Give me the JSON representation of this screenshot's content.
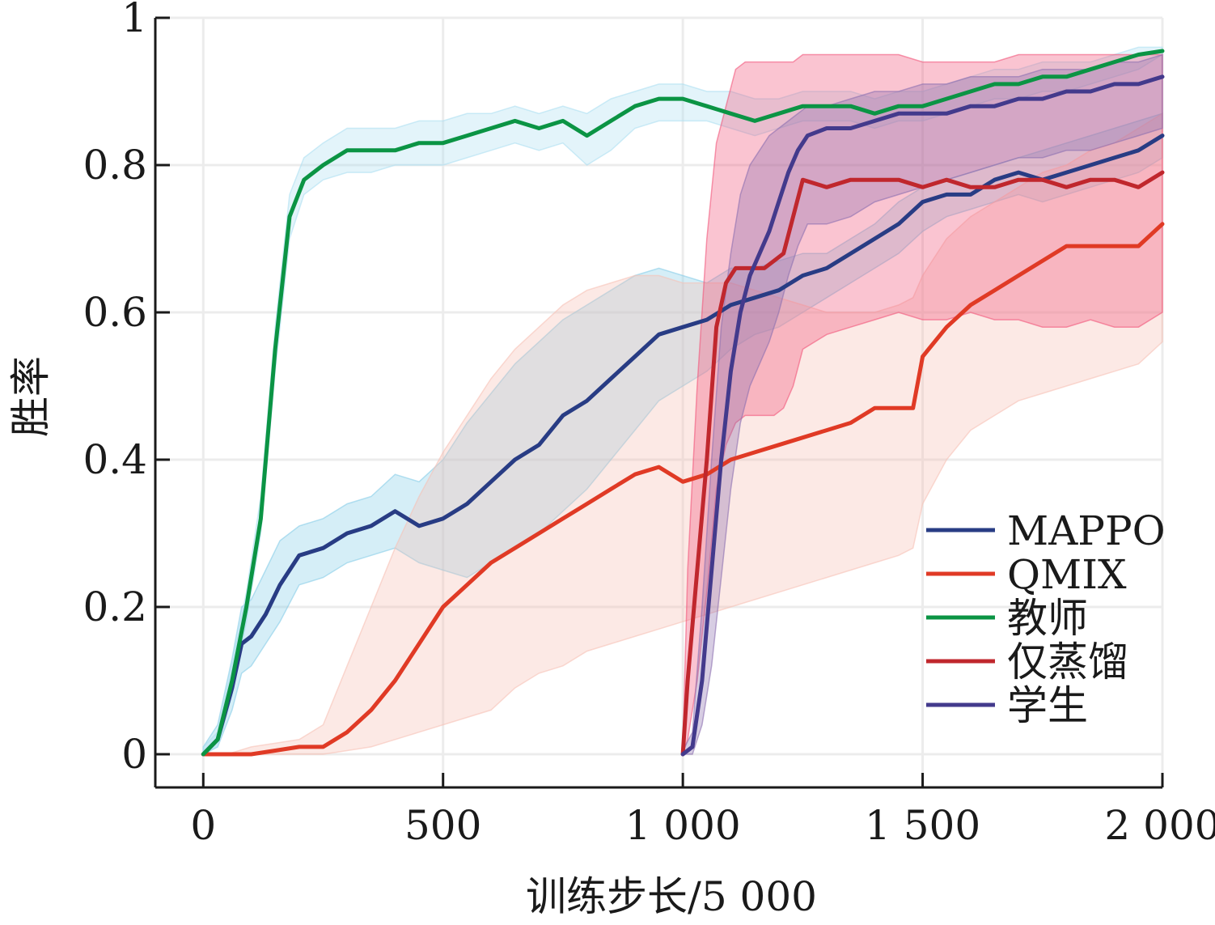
{
  "chart_data": {
    "type": "line",
    "xlabel": "训练步长/5 000",
    "ylabel": "胜率",
    "xlim": [
      -100,
      2000
    ],
    "ylim": [
      -0.045,
      1.0
    ],
    "x_ticks": [
      0,
      500,
      1000,
      1500,
      2000
    ],
    "x_tick_labels": [
      "0",
      "500",
      "1 000",
      "1 500",
      "2 000"
    ],
    "y_ticks": [
      0,
      0.2,
      0.4,
      0.6,
      0.8,
      1.0
    ],
    "y_tick_labels": [
      "0",
      "0.2",
      "0.4",
      "0.6",
      "0.8",
      "1"
    ],
    "grid": true,
    "legend_position": "bottom-right",
    "series": [
      {
        "name": "MAPPO",
        "color": "#283c84",
        "band_color": "#87cde8",
        "x": [
          0,
          30,
          60,
          80,
          100,
          130,
          160,
          200,
          250,
          300,
          350,
          400,
          450,
          500,
          550,
          600,
          650,
          700,
          750,
          800,
          850,
          900,
          950,
          1000,
          1050,
          1100,
          1150,
          1200,
          1250,
          1300,
          1350,
          1400,
          1450,
          1500,
          1550,
          1600,
          1650,
          1700,
          1750,
          1800,
          1850,
          1900,
          1950,
          2000
        ],
        "y": [
          0,
          0.02,
          0.09,
          0.15,
          0.16,
          0.19,
          0.23,
          0.27,
          0.28,
          0.3,
          0.31,
          0.33,
          0.31,
          0.32,
          0.34,
          0.37,
          0.4,
          0.42,
          0.46,
          0.48,
          0.51,
          0.54,
          0.57,
          0.58,
          0.59,
          0.61,
          0.62,
          0.63,
          0.65,
          0.66,
          0.68,
          0.7,
          0.72,
          0.75,
          0.76,
          0.76,
          0.78,
          0.79,
          0.78,
          0.79,
          0.8,
          0.81,
          0.82,
          0.84
        ],
        "upper": [
          0.01,
          0.04,
          0.13,
          0.2,
          0.21,
          0.25,
          0.29,
          0.31,
          0.32,
          0.34,
          0.35,
          0.38,
          0.37,
          0.4,
          0.45,
          0.49,
          0.53,
          0.56,
          0.59,
          0.61,
          0.63,
          0.65,
          0.66,
          0.65,
          0.64,
          0.66,
          0.66,
          0.67,
          0.68,
          0.68,
          0.7,
          0.72,
          0.75,
          0.77,
          0.78,
          0.79,
          0.8,
          0.81,
          0.82,
          0.83,
          0.84,
          0.85,
          0.86,
          0.87
        ],
        "lower": [
          0,
          0.01,
          0.06,
          0.11,
          0.12,
          0.15,
          0.18,
          0.23,
          0.24,
          0.26,
          0.27,
          0.28,
          0.26,
          0.25,
          0.24,
          0.26,
          0.28,
          0.3,
          0.33,
          0.36,
          0.4,
          0.44,
          0.48,
          0.5,
          0.52,
          0.55,
          0.57,
          0.58,
          0.6,
          0.62,
          0.64,
          0.66,
          0.68,
          0.71,
          0.73,
          0.74,
          0.75,
          0.76,
          0.75,
          0.76,
          0.77,
          0.78,
          0.79,
          0.81
        ]
      },
      {
        "name": "QMIX",
        "color": "#e03a25",
        "band_color": "#f7c1b5",
        "x": [
          0,
          50,
          100,
          150,
          200,
          250,
          300,
          350,
          400,
          450,
          500,
          550,
          600,
          650,
          700,
          750,
          800,
          850,
          900,
          950,
          1000,
          1050,
          1100,
          1150,
          1200,
          1250,
          1300,
          1350,
          1400,
          1450,
          1480,
          1500,
          1550,
          1600,
          1650,
          1700,
          1750,
          1800,
          1850,
          1900,
          1950,
          2000
        ],
        "y": [
          0,
          0,
          0,
          0.005,
          0.01,
          0.01,
          0.03,
          0.06,
          0.1,
          0.15,
          0.2,
          0.23,
          0.26,
          0.28,
          0.3,
          0.32,
          0.34,
          0.36,
          0.38,
          0.39,
          0.37,
          0.38,
          0.4,
          0.41,
          0.42,
          0.43,
          0.44,
          0.45,
          0.47,
          0.47,
          0.47,
          0.54,
          0.58,
          0.61,
          0.63,
          0.65,
          0.67,
          0.69,
          0.69,
          0.69,
          0.69,
          0.72
        ],
        "upper": [
          0,
          0,
          0.01,
          0.015,
          0.02,
          0.04,
          0.12,
          0.2,
          0.28,
          0.35,
          0.41,
          0.46,
          0.51,
          0.55,
          0.58,
          0.61,
          0.63,
          0.64,
          0.65,
          0.65,
          0.64,
          0.64,
          0.64,
          0.63,
          0.62,
          0.61,
          0.6,
          0.6,
          0.6,
          0.61,
          0.62,
          0.65,
          0.7,
          0.73,
          0.75,
          0.77,
          0.79,
          0.8,
          0.82,
          0.83,
          0.85,
          0.87
        ],
        "lower": [
          0,
          0,
          0,
          0,
          0,
          0,
          0.005,
          0.01,
          0.02,
          0.03,
          0.04,
          0.05,
          0.06,
          0.09,
          0.11,
          0.12,
          0.14,
          0.15,
          0.16,
          0.17,
          0.18,
          0.19,
          0.2,
          0.21,
          0.22,
          0.23,
          0.24,
          0.25,
          0.26,
          0.27,
          0.28,
          0.34,
          0.4,
          0.44,
          0.46,
          0.48,
          0.49,
          0.5,
          0.51,
          0.52,
          0.53,
          0.56
        ]
      },
      {
        "name": "教师",
        "color": "#0b9444",
        "band_color": "#aee0f2",
        "x": [
          0,
          30,
          60,
          90,
          120,
          150,
          180,
          210,
          250,
          300,
          350,
          400,
          450,
          500,
          550,
          600,
          650,
          700,
          750,
          800,
          850,
          900,
          950,
          1000,
          1050,
          1100,
          1150,
          1200,
          1250,
          1300,
          1350,
          1400,
          1450,
          1500,
          1550,
          1600,
          1650,
          1700,
          1750,
          1800,
          1850,
          1900,
          1950,
          2000
        ],
        "y": [
          0,
          0.02,
          0.1,
          0.2,
          0.32,
          0.55,
          0.73,
          0.78,
          0.8,
          0.82,
          0.82,
          0.82,
          0.83,
          0.83,
          0.84,
          0.85,
          0.86,
          0.85,
          0.86,
          0.84,
          0.86,
          0.88,
          0.89,
          0.89,
          0.88,
          0.87,
          0.86,
          0.87,
          0.88,
          0.88,
          0.88,
          0.87,
          0.88,
          0.88,
          0.89,
          0.9,
          0.91,
          0.91,
          0.92,
          0.92,
          0.93,
          0.94,
          0.95,
          0.955
        ],
        "upper": [
          0.01,
          0.03,
          0.12,
          0.22,
          0.35,
          0.58,
          0.76,
          0.81,
          0.83,
          0.85,
          0.85,
          0.85,
          0.86,
          0.86,
          0.87,
          0.87,
          0.88,
          0.87,
          0.88,
          0.87,
          0.89,
          0.9,
          0.91,
          0.91,
          0.9,
          0.9,
          0.89,
          0.89,
          0.9,
          0.9,
          0.9,
          0.89,
          0.9,
          0.9,
          0.91,
          0.92,
          0.93,
          0.93,
          0.94,
          0.94,
          0.94,
          0.95,
          0.96,
          0.96
        ],
        "lower": [
          0,
          0.01,
          0.08,
          0.18,
          0.3,
          0.52,
          0.7,
          0.76,
          0.78,
          0.79,
          0.79,
          0.8,
          0.8,
          0.8,
          0.81,
          0.82,
          0.83,
          0.82,
          0.83,
          0.8,
          0.82,
          0.85,
          0.86,
          0.86,
          0.86,
          0.85,
          0.84,
          0.85,
          0.86,
          0.86,
          0.86,
          0.85,
          0.86,
          0.86,
          0.87,
          0.88,
          0.89,
          0.89,
          0.9,
          0.9,
          0.91,
          0.92,
          0.93,
          0.95
        ]
      },
      {
        "name": "仅蒸馏",
        "color": "#c0272d",
        "band_color": "#f1557a",
        "x": [
          1000,
          1010,
          1030,
          1050,
          1070,
          1090,
          1110,
          1130,
          1150,
          1170,
          1190,
          1210,
          1230,
          1250,
          1300,
          1350,
          1400,
          1450,
          1500,
          1550,
          1600,
          1650,
          1700,
          1750,
          1800,
          1850,
          1900,
          1950,
          2000
        ],
        "y": [
          0,
          0.1,
          0.25,
          0.4,
          0.58,
          0.64,
          0.66,
          0.66,
          0.66,
          0.66,
          0.67,
          0.68,
          0.73,
          0.78,
          0.77,
          0.78,
          0.78,
          0.78,
          0.77,
          0.78,
          0.77,
          0.77,
          0.78,
          0.78,
          0.77,
          0.78,
          0.78,
          0.77,
          0.79
        ],
        "upper": [
          0.01,
          0.25,
          0.5,
          0.7,
          0.83,
          0.88,
          0.93,
          0.94,
          0.94,
          0.94,
          0.94,
          0.94,
          0.94,
          0.95,
          0.95,
          0.95,
          0.95,
          0.95,
          0.94,
          0.94,
          0.94,
          0.94,
          0.95,
          0.95,
          0.95,
          0.95,
          0.95,
          0.95,
          0.95
        ],
        "lower": [
          0,
          0.02,
          0.1,
          0.22,
          0.36,
          0.42,
          0.45,
          0.46,
          0.46,
          0.46,
          0.46,
          0.47,
          0.5,
          0.55,
          0.57,
          0.58,
          0.59,
          0.6,
          0.59,
          0.59,
          0.6,
          0.59,
          0.59,
          0.58,
          0.58,
          0.59,
          0.58,
          0.58,
          0.6
        ]
      },
      {
        "name": "学生",
        "color": "#433a8c",
        "band_color": "#8c6fb0",
        "x": [
          1000,
          1020,
          1040,
          1060,
          1080,
          1100,
          1120,
          1140,
          1160,
          1180,
          1200,
          1220,
          1240,
          1260,
          1300,
          1350,
          1400,
          1450,
          1500,
          1550,
          1600,
          1650,
          1700,
          1750,
          1800,
          1850,
          1900,
          1950,
          2000
        ],
        "y": [
          0,
          0.01,
          0.1,
          0.25,
          0.4,
          0.52,
          0.6,
          0.65,
          0.68,
          0.71,
          0.75,
          0.79,
          0.82,
          0.84,
          0.85,
          0.85,
          0.86,
          0.87,
          0.87,
          0.87,
          0.88,
          0.88,
          0.89,
          0.89,
          0.9,
          0.9,
          0.91,
          0.91,
          0.92
        ],
        "upper": [
          0.005,
          0.03,
          0.2,
          0.4,
          0.58,
          0.68,
          0.76,
          0.8,
          0.82,
          0.84,
          0.85,
          0.86,
          0.87,
          0.88,
          0.88,
          0.89,
          0.9,
          0.9,
          0.91,
          0.91,
          0.92,
          0.92,
          0.92,
          0.93,
          0.93,
          0.93,
          0.94,
          0.94,
          0.95
        ],
        "lower": [
          0,
          0,
          0.04,
          0.12,
          0.24,
          0.36,
          0.45,
          0.5,
          0.53,
          0.56,
          0.6,
          0.65,
          0.69,
          0.72,
          0.72,
          0.73,
          0.75,
          0.76,
          0.77,
          0.78,
          0.79,
          0.8,
          0.81,
          0.81,
          0.82,
          0.82,
          0.83,
          0.84,
          0.85
        ]
      }
    ]
  }
}
